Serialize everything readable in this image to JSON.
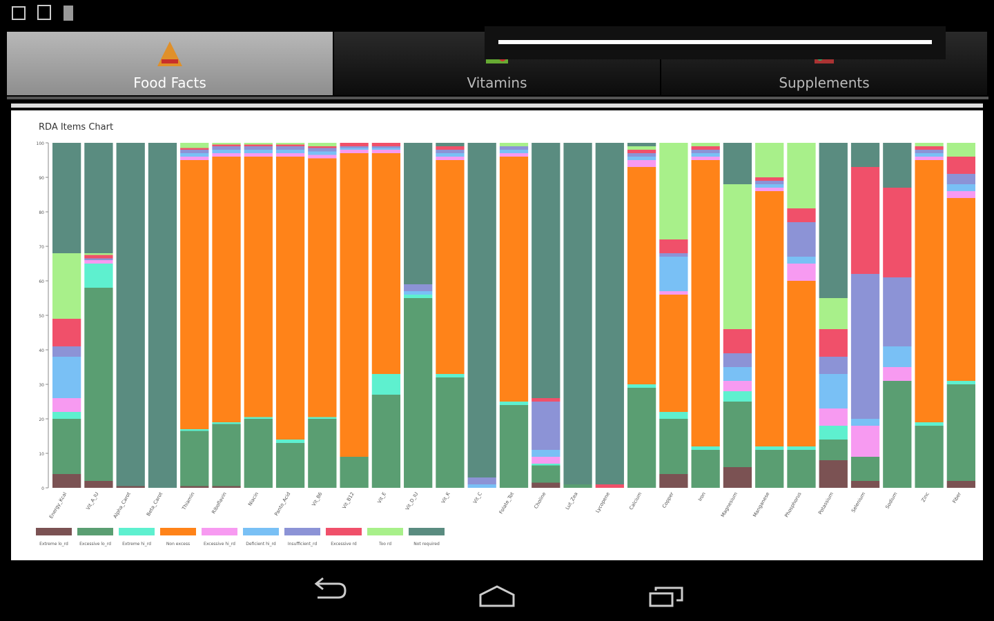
{
  "tabs": [
    "Food Facts",
    "Vitamins",
    "Supplements"
  ],
  "chart_data": {
    "type": "bar",
    "stacked": true,
    "title": "RDA Items Chart",
    "categories": [
      "Energy_Kcal",
      "Vit_A_IU",
      "Alpha_Carot",
      "Beta_Carot",
      "Thiamin",
      "Riboflavin",
      "Niacin",
      "Panto_Acid",
      "Vit_B6",
      "Vit_B12",
      "Vit_E",
      "Vit_D_IU",
      "Vit_K",
      "Vit_C",
      "Folate_Tot",
      "Choline",
      "Lut_Zea",
      "Lycopene",
      "Calcium",
      "Copper",
      "Iron",
      "Magnesium",
      "Manganese",
      "Phosphorus",
      "Potassium",
      "Selenium",
      "Sodium",
      "Zinc",
      "Fiber"
    ],
    "ylim": [
      0,
      100
    ],
    "yticks": [
      0,
      10,
      20,
      30,
      40,
      50,
      60,
      70,
      80,
      90,
      100
    ],
    "grid": false,
    "series": [
      {
        "name": "Extreme lo_rd",
        "color": "#7b5253",
        "values": [
          4,
          2,
          0.5,
          0,
          0.5,
          0.5,
          0,
          0,
          0,
          0,
          0,
          0,
          0,
          0,
          0,
          1.5,
          0,
          0,
          0,
          4,
          0,
          6,
          0,
          0,
          8,
          2,
          0,
          0,
          2
        ]
      },
      {
        "name": "Excessive lo_rd",
        "color": "#5a9e72",
        "values": [
          16,
          56,
          0,
          0,
          16,
          18,
          20,
          13,
          20,
          9,
          27,
          55,
          32,
          0,
          24,
          5,
          1,
          0,
          29,
          16,
          11,
          19,
          11,
          11,
          6,
          7,
          31,
          18,
          28
        ]
      },
      {
        "name": "Extreme hi_rd",
        "color": "#5ef0cf",
        "values": [
          2,
          7,
          0,
          0,
          0.5,
          0.5,
          0.5,
          1,
          0.5,
          0,
          6,
          1,
          1,
          0,
          1,
          0.5,
          0,
          0,
          1,
          2,
          1,
          3,
          1,
          1,
          4,
          0,
          0,
          1,
          1
        ]
      },
      {
        "name": "Non excess",
        "color": "#ff8319",
        "values": [
          0,
          0,
          0,
          0,
          78,
          77,
          75.5,
          82,
          75,
          88,
          64,
          0,
          62,
          0,
          71,
          0,
          0,
          0,
          63,
          34,
          83,
          0,
          74,
          48,
          0,
          0,
          0,
          76,
          53
        ]
      },
      {
        "name": "Excessive hi_rd",
        "color": "#f79af1",
        "values": [
          4,
          1,
          0,
          0,
          1,
          1,
          1,
          1,
          1,
          1,
          1,
          0,
          1,
          0,
          1,
          2,
          0,
          0,
          2,
          1,
          1,
          3,
          1,
          5,
          5,
          9,
          4,
          1,
          2
        ]
      },
      {
        "name": "Deficient hi_rd",
        "color": "#79c0f5",
        "values": [
          12,
          0,
          0,
          0,
          1,
          1,
          1,
          1,
          1,
          0.5,
          0.5,
          1,
          1,
          1,
          1,
          2,
          0,
          0,
          1,
          10,
          1,
          4,
          1,
          2,
          10,
          2,
          6,
          1,
          2
        ]
      },
      {
        "name": "Insufficient_rd",
        "color": "#8c93d6",
        "values": [
          3,
          0.5,
          0,
          0,
          1,
          1,
          1,
          1,
          1,
          0.5,
          0.5,
          2,
          1,
          2,
          1,
          14,
          0,
          0,
          1,
          1,
          1,
          4,
          1,
          10,
          5,
          42,
          20,
          1,
          3
        ]
      },
      {
        "name": "Excessive rd",
        "color": "#f0506a",
        "values": [
          8,
          1,
          0,
          0,
          0.5,
          0.5,
          0.5,
          0.5,
          0.5,
          1,
          1,
          0,
          1,
          0,
          0,
          1,
          0,
          1,
          1,
          4,
          1,
          7,
          1,
          4,
          8,
          31,
          26,
          1,
          5
        ]
      },
      {
        "name": "Too rd",
        "color": "#a8f08a",
        "values": [
          19,
          0.5,
          0,
          0,
          1.5,
          0.5,
          0.5,
          0.5,
          1,
          0,
          0,
          0,
          0,
          0,
          1,
          0,
          0,
          0,
          1,
          28,
          1,
          42,
          10,
          19,
          9,
          0,
          0,
          1,
          4
        ]
      },
      {
        "name": "Not required",
        "color": "#5a8c80",
        "values": [
          32,
          32,
          99.5,
          100,
          0,
          0,
          0,
          0,
          0,
          0,
          0,
          41,
          1,
          97,
          0,
          74,
          99,
          99,
          1,
          0,
          0,
          12,
          0,
          0,
          45,
          7,
          13,
          0,
          0
        ]
      }
    ]
  }
}
